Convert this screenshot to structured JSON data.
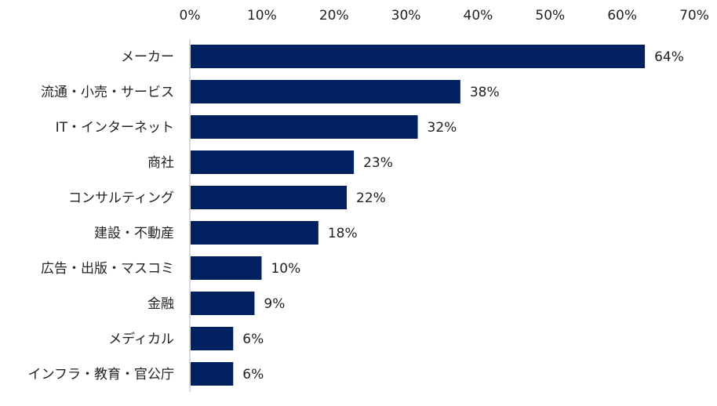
{
  "chart_data": {
    "type": "bar",
    "orientation": "horizontal",
    "categories": [
      "メーカー",
      "流通・小売・サービス",
      "IT・インターネット",
      "商社",
      "コンサルティング",
      "建設・不動産",
      "広告・出版・マスコミ",
      "金融",
      "メディカル",
      "インフラ・教育・官公庁"
    ],
    "values": [
      64,
      38,
      32,
      23,
      22,
      18,
      10,
      9,
      6,
      6
    ],
    "value_labels": [
      "64%",
      "38%",
      "32%",
      "23%",
      "22%",
      "18%",
      "10%",
      "9%",
      "6%",
      "6%"
    ],
    "xlim": [
      0,
      70
    ],
    "x_ticks": [
      "0%",
      "10%",
      "20%",
      "30%",
      "40%",
      "50%",
      "60%",
      "70%"
    ],
    "x_axis_position": "top",
    "grid": false,
    "bar_color": "#002060"
  }
}
